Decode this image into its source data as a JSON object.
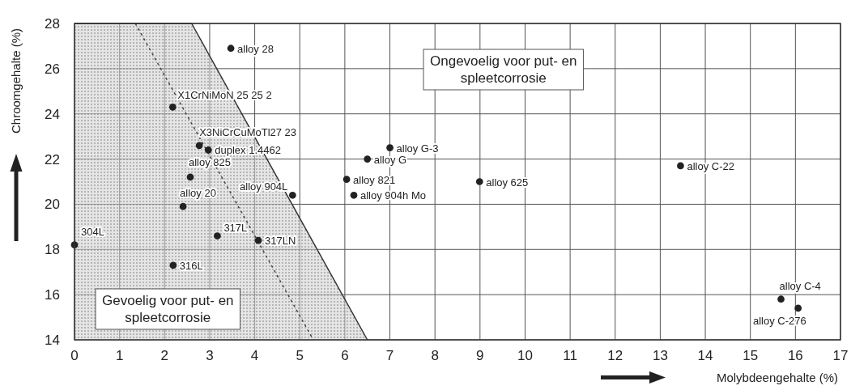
{
  "chart_data": {
    "type": "scatter",
    "xlabel": "Molybdeengehalte (%)",
    "ylabel": "Chroomgehalte (%)",
    "xlim": [
      0,
      17
    ],
    "xticks": [
      0,
      1,
      2,
      3,
      4,
      5,
      6,
      7,
      8,
      9,
      10,
      11,
      12,
      13,
      14,
      15,
      16,
      17
    ],
    "ylim": [
      14,
      28
    ],
    "yticks": [
      14,
      16,
      18,
      20,
      22,
      24,
      26,
      28
    ],
    "grid": true,
    "series": [
      {
        "type": "area",
        "color": "#cfcfcf",
        "x": [
          0,
          2.6,
          6.5
        ],
        "values": [
          28,
          28,
          14
        ]
      },
      {
        "type": "line",
        "line_style": "dotted",
        "color": "#444444",
        "x": [
          1.35,
          5.3
        ],
        "values": [
          28,
          14
        ]
      },
      {
        "marker": "circle",
        "color": "#222222",
        "x": [
          3.47,
          2.18,
          2.77,
          2.97,
          2.57,
          2.41,
          0,
          3.17,
          4.08,
          2.19,
          4.84,
          6.04,
          6.2,
          6.5,
          7.0,
          8.99,
          13.45,
          15.68,
          16.06
        ],
        "values": [
          26.9,
          24.3,
          22.6,
          22.4,
          21.2,
          19.9,
          18.2,
          18.6,
          18.4,
          17.3,
          20.4,
          21.1,
          20.4,
          22.0,
          22.5,
          21.0,
          21.7,
          15.8,
          15.4
        ]
      }
    ],
    "annotations": [
      {
        "text": "alloy 28",
        "x": 3.47,
        "y": 26.9
      },
      {
        "text": "X1CrNiMoN 25 25 2",
        "x": 2.18,
        "y": 24.3
      },
      {
        "text": "X3NiCrCuMoTl27 23",
        "x": 2.77,
        "y": 22.6
      },
      {
        "text": "duplex 1.4462",
        "x": 2.97,
        "y": 22.4
      },
      {
        "text": "alloy 825",
        "x": 2.57,
        "y": 21.2
      },
      {
        "text": "alloy 20",
        "x": 2.41,
        "y": 19.9
      },
      {
        "text": "304L",
        "x": 0,
        "y": 18.2
      },
      {
        "text": "317L",
        "x": 3.17,
        "y": 18.6
      },
      {
        "text": "317LN",
        "x": 4.08,
        "y": 18.4
      },
      {
        "text": "316L",
        "x": 2.19,
        "y": 17.3
      },
      {
        "text": "alloy 904L",
        "x": 4.84,
        "y": 20.4
      },
      {
        "text": "alloy 821",
        "x": 6.04,
        "y": 21.1
      },
      {
        "text": "alloy 904h Mo",
        "x": 6.2,
        "y": 20.4
      },
      {
        "text": "alloy G",
        "x": 6.5,
        "y": 22.0
      },
      {
        "text": "alloy G-3",
        "x": 7.0,
        "y": 22.5
      },
      {
        "text": "alloy 625",
        "x": 8.99,
        "y": 21.0
      },
      {
        "text": "alloy C-22",
        "x": 13.45,
        "y": 21.7
      },
      {
        "text": "alloy C-4",
        "x": 15.68,
        "y": 15.8
      },
      {
        "text": "alloy C-276",
        "x": 16.06,
        "y": 15.4
      },
      "Gevoelig voor put- en\nspleetcorrosie",
      "Ongevoelig voor put- en\nspleetcorrosie"
    ]
  }
}
